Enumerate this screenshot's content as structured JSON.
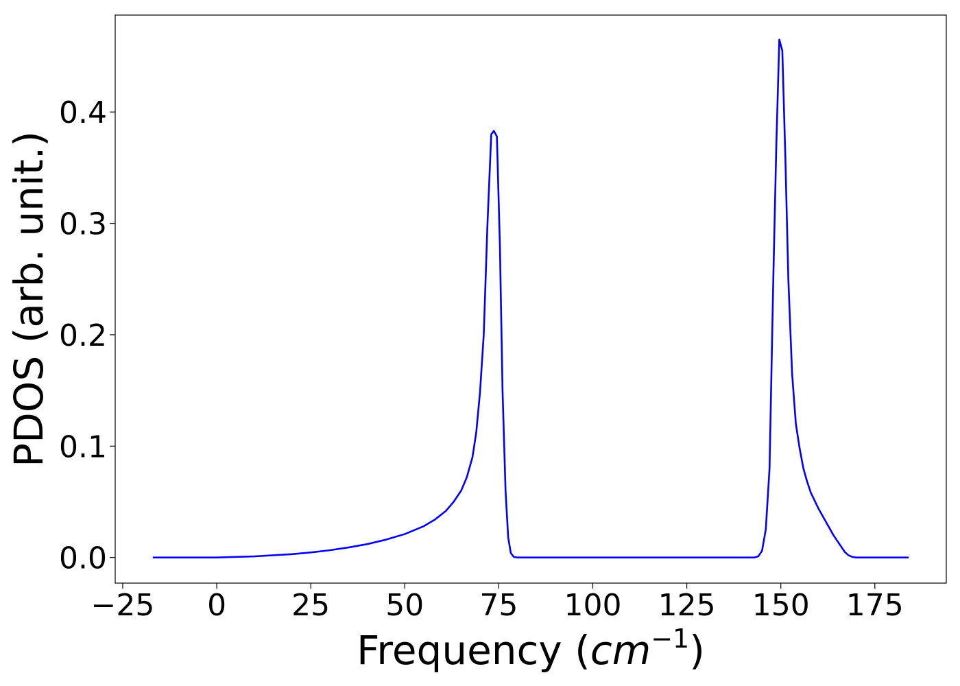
{
  "chart_data": {
    "type": "line",
    "title": "",
    "xlabel": "Frequency (",
    "xlabel_math_base": "cm",
    "xlabel_math_exp": "−1",
    "xlabel_suffix": ")",
    "ylabel": "PDOS (arb. unit.)",
    "xlim": [
      -27,
      194
    ],
    "ylim": [
      -0.023,
      0.487
    ],
    "xticks": [
      -25,
      0,
      25,
      50,
      75,
      100,
      125,
      150,
      175
    ],
    "xtick_labels": [
      "−25",
      "0",
      "25",
      "50",
      "75",
      "100",
      "125",
      "150",
      "175"
    ],
    "yticks": [
      0.0,
      0.1,
      0.2,
      0.3,
      0.4
    ],
    "ytick_labels": [
      "0.0",
      "0.1",
      "0.2",
      "0.3",
      "0.4"
    ],
    "grid": false,
    "series": [
      {
        "color": "#0000ff",
        "x": [
          -17,
          0,
          5,
          10,
          15,
          20,
          25,
          30,
          35,
          40,
          45,
          50,
          55,
          58,
          61,
          63,
          65,
          66.5,
          68,
          69,
          70,
          71,
          72,
          73,
          73.7,
          74.5,
          75.3,
          76,
          76.8,
          77.5,
          78.2,
          79,
          80,
          82,
          100,
          125,
          143,
          144,
          145,
          146,
          147,
          148,
          148.8,
          149.6,
          150.4,
          151.2,
          152,
          153,
          154,
          155,
          156,
          157,
          158,
          160,
          162,
          164,
          166,
          167,
          168,
          169,
          170,
          172,
          175,
          184
        ],
        "y": [
          0.0,
          0.0,
          0.0005,
          0.001,
          0.002,
          0.003,
          0.0045,
          0.0065,
          0.009,
          0.012,
          0.016,
          0.021,
          0.028,
          0.034,
          0.042,
          0.05,
          0.06,
          0.072,
          0.09,
          0.112,
          0.148,
          0.2,
          0.3,
          0.38,
          0.383,
          0.378,
          0.28,
          0.15,
          0.06,
          0.018,
          0.004,
          0.0005,
          0.0,
          0.0,
          0.0,
          0.0,
          0.0,
          0.001,
          0.006,
          0.025,
          0.08,
          0.25,
          0.37,
          0.465,
          0.455,
          0.36,
          0.25,
          0.165,
          0.12,
          0.098,
          0.08,
          0.068,
          0.058,
          0.044,
          0.032,
          0.02,
          0.01,
          0.005,
          0.002,
          0.0005,
          0.0,
          0.0,
          0.0,
          0.0
        ]
      }
    ]
  }
}
